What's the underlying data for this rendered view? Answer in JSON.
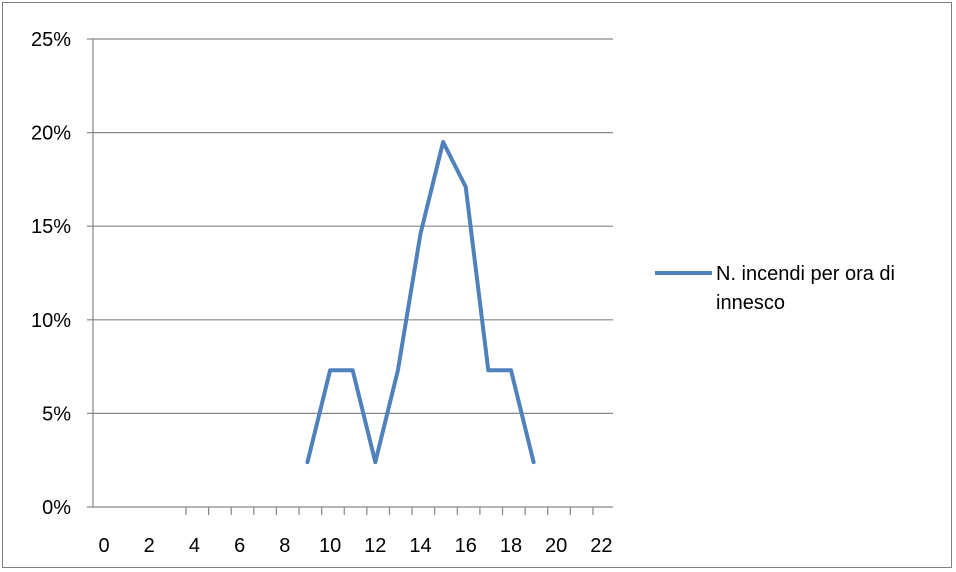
{
  "chart_data": {
    "type": "line",
    "title": "",
    "xlabel": "",
    "ylabel": "",
    "x_ticks": [
      0,
      2,
      4,
      6,
      8,
      10,
      12,
      14,
      16,
      18,
      20,
      22
    ],
    "y_ticks": [
      "0%",
      "5%",
      "10%",
      "15%",
      "20%",
      "25%"
    ],
    "xlim": [
      0,
      23
    ],
    "ylim": [
      0,
      25
    ],
    "grid": "horizontal",
    "legend_position": "right",
    "series": [
      {
        "name": "N. incendi per ora di innesco",
        "legend_lines": [
          "N. incendi per ora di",
          "innesco"
        ],
        "color": "#4F81BD",
        "x": [
          9,
          10,
          11,
          12,
          13,
          14,
          15,
          16,
          17,
          18,
          19
        ],
        "values": [
          2.4,
          7.3,
          7.3,
          2.4,
          7.3,
          14.6,
          19.5,
          17.1,
          7.3,
          7.3,
          2.4
        ]
      }
    ]
  }
}
